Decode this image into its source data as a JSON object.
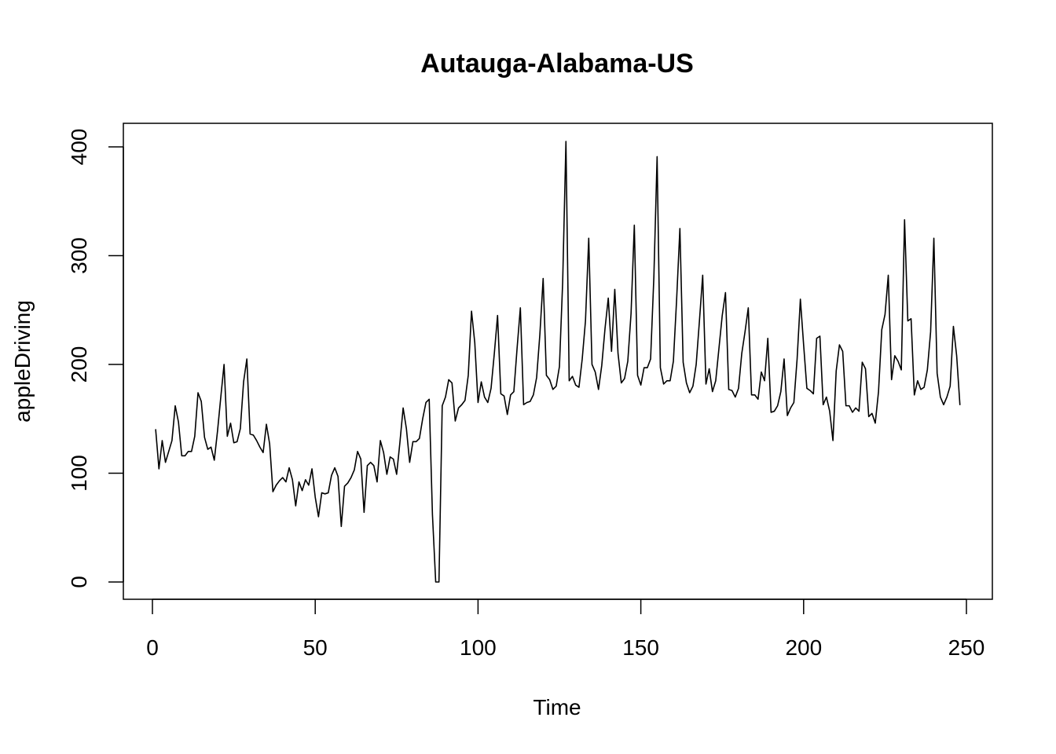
{
  "chart_data": {
    "type": "line",
    "title": "Autauga-Alabama-US",
    "xlabel": "Time",
    "ylabel": "appleDriving",
    "xlim": [
      0,
      250
    ],
    "ylim": [
      0,
      400
    ],
    "x_ticks": [
      0,
      50,
      100,
      150,
      200,
      250
    ],
    "y_ticks": [
      0,
      100,
      200,
      300,
      400
    ],
    "x_tick_labels": [
      "0",
      "50",
      "100",
      "150",
      "200",
      "250"
    ],
    "y_tick_labels": [
      "0",
      "100",
      "200",
      "300",
      "400"
    ],
    "grid": false,
    "line_color": "#000000",
    "series": [
      {
        "x_start": 1,
        "x_step": 1,
        "values": [
          140,
          104,
          130,
          110,
          120,
          130,
          162,
          147,
          116,
          116,
          120,
          120,
          134,
          174,
          166,
          133,
          122,
          124,
          112,
          139,
          170,
          200,
          134,
          146,
          128,
          129,
          141,
          184,
          205,
          136,
          135,
          130,
          124,
          119,
          145,
          127,
          83,
          89,
          93,
          96,
          92,
          105,
          94,
          70,
          92,
          84,
          94,
          89,
          104,
          78,
          60,
          82,
          81,
          82,
          98,
          105,
          97,
          51,
          88,
          91,
          96,
          103,
          120,
          113,
          64,
          107,
          110,
          107,
          92,
          130,
          119,
          99,
          115,
          113,
          99,
          128,
          160,
          141,
          110,
          129,
          129,
          132,
          150,
          165,
          168,
          62,
          0,
          0,
          162,
          170,
          186,
          183,
          148,
          160,
          163,
          167,
          190,
          249,
          220,
          165,
          184,
          170,
          165,
          178,
          210,
          245,
          173,
          171,
          154,
          172,
          175,
          215,
          252,
          163,
          165,
          166,
          172,
          188,
          228,
          279,
          190,
          186,
          177,
          180,
          198,
          276,
          405,
          185,
          189,
          181,
          179,
          205,
          240,
          316,
          200,
          193,
          177,
          199,
          233,
          261,
          212,
          269,
          210,
          183,
          187,
          203,
          247,
          328,
          190,
          181,
          197,
          197,
          205,
          280,
          391,
          197,
          182,
          185,
          185,
          203,
          260,
          325,
          202,
          183,
          174,
          180,
          200,
          240,
          282,
          182,
          196,
          175,
          185,
          215,
          245,
          266,
          177,
          176,
          170,
          178,
          210,
          230,
          252,
          172,
          172,
          168,
          193,
          185,
          224,
          156,
          157,
          162,
          175,
          205,
          153,
          160,
          165,
          205,
          260,
          218,
          178,
          176,
          173,
          224,
          226,
          163,
          170,
          157,
          130,
          194,
          218,
          212,
          162,
          162,
          156,
          160,
          157,
          202,
          196,
          152,
          155,
          146,
          175,
          232,
          246,
          282,
          186,
          208,
          203,
          195,
          333,
          240,
          242,
          172,
          185,
          177,
          179,
          195,
          230,
          316,
          192,
          170,
          163,
          170,
          180,
          235,
          208,
          163
        ]
      }
    ]
  }
}
